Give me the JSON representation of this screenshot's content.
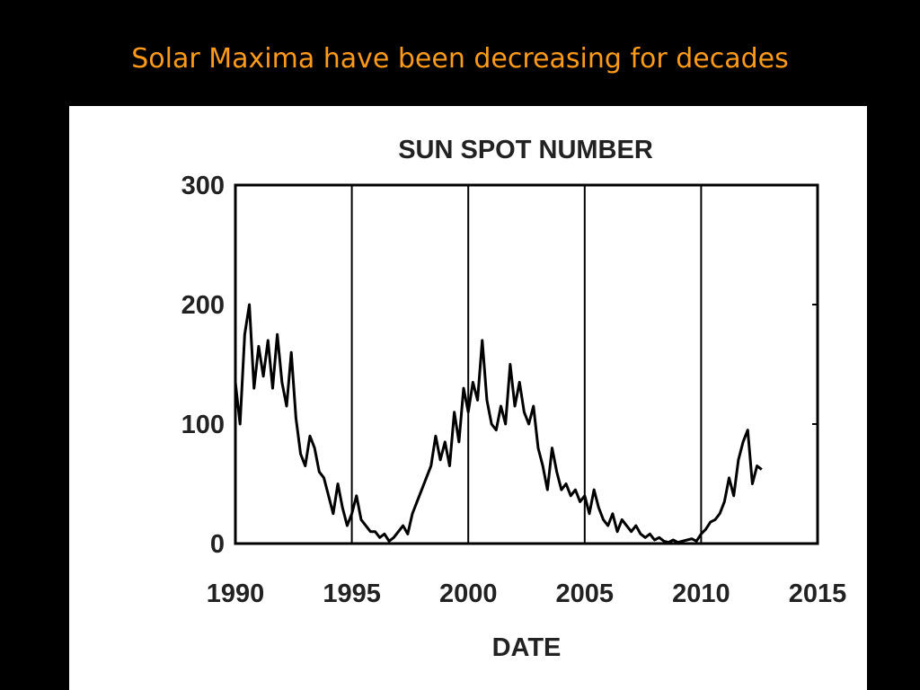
{
  "heading": "Solar Maxima have been decreasing for decades",
  "chart_data": {
    "type": "line",
    "title": "SUN SPOT NUMBER",
    "x_label": "DATE",
    "xlim": [
      1990,
      2015
    ],
    "xticks": [
      1990,
      1995,
      2000,
      2005,
      2010,
      2015
    ],
    "ylim": [
      0,
      300
    ],
    "yticks": [
      0,
      100,
      200,
      300
    ],
    "grid": "x",
    "series": [
      {
        "name": "Sunspot number",
        "color": "#000000",
        "x": [
          1990.0,
          1990.2,
          1990.4,
          1990.6,
          1990.8,
          1991.0,
          1991.2,
          1991.4,
          1991.6,
          1991.8,
          1992.0,
          1992.2,
          1992.4,
          1992.6,
          1992.8,
          1993.0,
          1993.2,
          1993.4,
          1993.6,
          1993.8,
          1994.0,
          1994.2,
          1994.4,
          1994.6,
          1994.8,
          1995.0,
          1995.2,
          1995.4,
          1995.6,
          1995.8,
          1996.0,
          1996.2,
          1996.4,
          1996.6,
          1996.8,
          1997.0,
          1997.2,
          1997.4,
          1997.6,
          1997.8,
          1998.0,
          1998.2,
          1998.4,
          1998.6,
          1998.8,
          1999.0,
          1999.2,
          1999.4,
          1999.6,
          1999.8,
          2000.0,
          2000.2,
          2000.4,
          2000.6,
          2000.8,
          2001.0,
          2001.2,
          2001.4,
          2001.6,
          2001.8,
          2002.0,
          2002.2,
          2002.4,
          2002.6,
          2002.8,
          2003.0,
          2003.2,
          2003.4,
          2003.6,
          2003.8,
          2004.0,
          2004.2,
          2004.4,
          2004.6,
          2004.8,
          2005.0,
          2005.2,
          2005.4,
          2005.6,
          2005.8,
          2006.0,
          2006.2,
          2006.4,
          2006.6,
          2006.8,
          2007.0,
          2007.2,
          2007.4,
          2007.6,
          2007.8,
          2008.0,
          2008.2,
          2008.4,
          2008.6,
          2008.8,
          2009.0,
          2009.2,
          2009.4,
          2009.6,
          2009.8,
          2010.0,
          2010.2,
          2010.4,
          2010.6,
          2010.8,
          2011.0,
          2011.2,
          2011.4,
          2011.6,
          2011.8,
          2012.0,
          2012.2,
          2012.4,
          2012.6
        ],
        "values": [
          135,
          100,
          175,
          200,
          130,
          165,
          140,
          170,
          130,
          175,
          135,
          115,
          160,
          105,
          75,
          65,
          90,
          80,
          60,
          55,
          40,
          25,
          50,
          30,
          15,
          25,
          40,
          20,
          15,
          10,
          10,
          5,
          8,
          2,
          5,
          10,
          15,
          8,
          25,
          35,
          45,
          55,
          65,
          90,
          70,
          85,
          65,
          110,
          85,
          130,
          110,
          135,
          120,
          170,
          120,
          100,
          95,
          115,
          100,
          150,
          115,
          135,
          110,
          100,
          115,
          80,
          65,
          45,
          80,
          60,
          45,
          50,
          40,
          45,
          35,
          40,
          25,
          45,
          30,
          20,
          15,
          25,
          10,
          20,
          15,
          10,
          15,
          8,
          5,
          8,
          3,
          5,
          2,
          1,
          3,
          1,
          2,
          3,
          4,
          2,
          8,
          12,
          18,
          20,
          25,
          35,
          55,
          40,
          70,
          85,
          95,
          50,
          65,
          62
        ]
      }
    ]
  }
}
